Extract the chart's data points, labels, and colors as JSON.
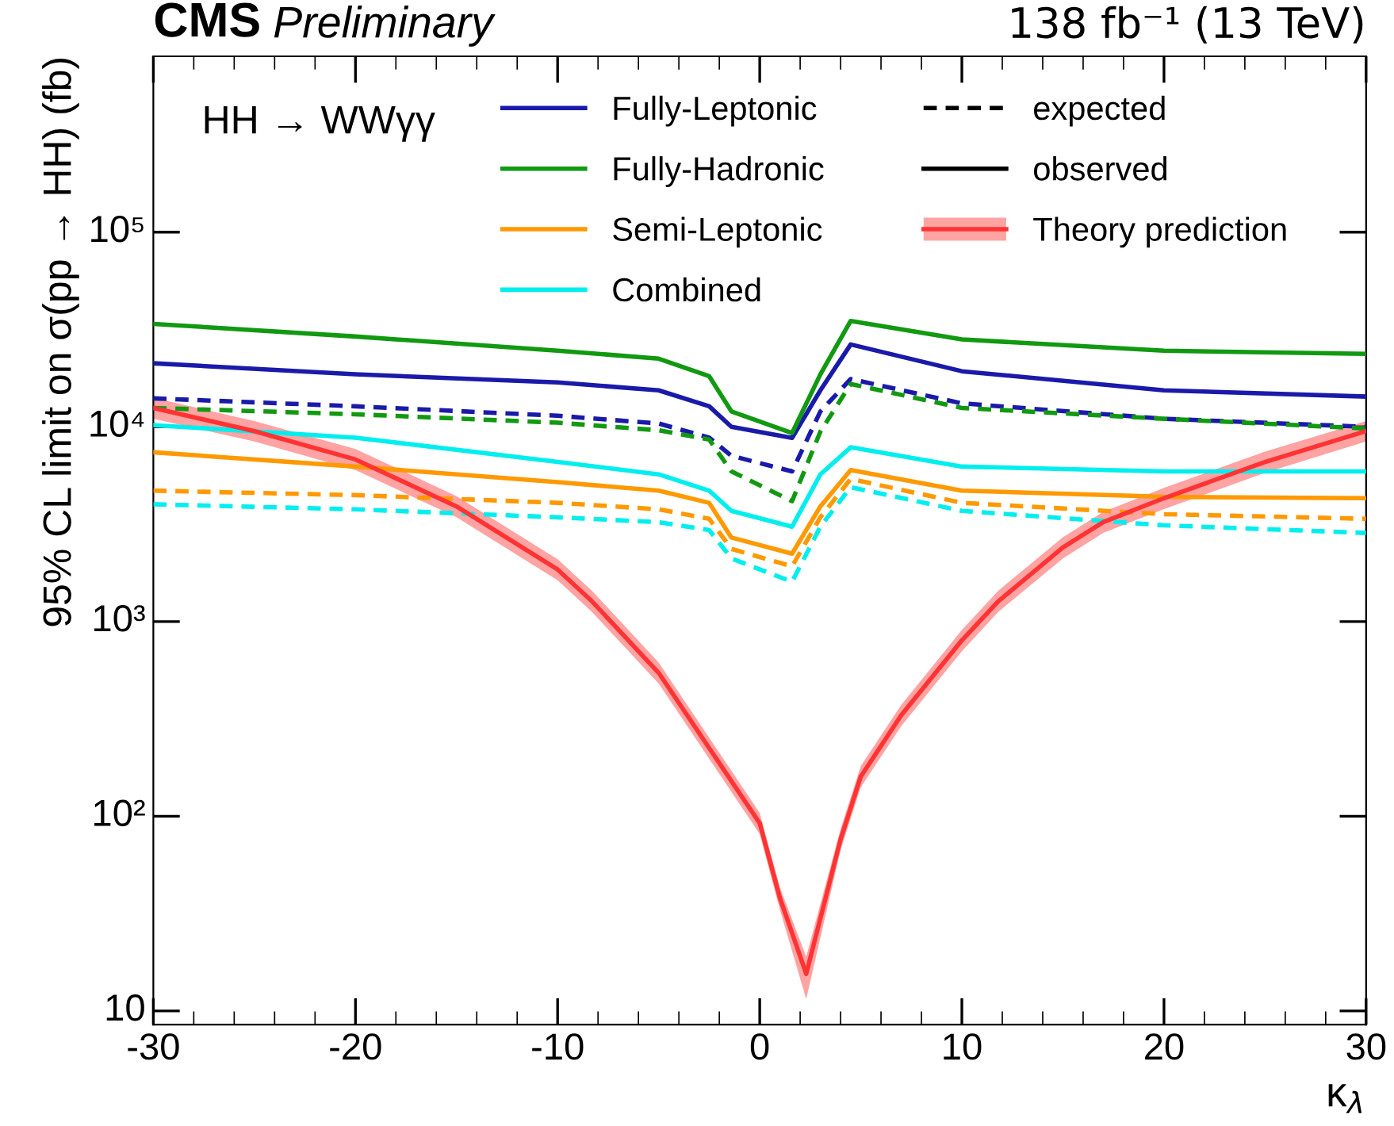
{
  "chart_data": {
    "type": "line",
    "title": "CMS",
    "subtitle": "Preliminary",
    "xlabel": "κ$_{λ}$",
    "ylabel": "95% CL limit on σ(pp → HH) (fb)",
    "annotations": [
      "138 fb⁻¹ (13 TeV)",
      "HH → WWγγ",
      "expected",
      "observed"
    ],
    "log": "y",
    "xlim": [
      -30,
      30
    ],
    "ylim": [
      8.5,
      800000
    ],
    "xticks": [
      -30,
      -20,
      -10,
      0,
      10,
      20,
      30
    ],
    "yticks": [
      {
        "value": 10,
        "label": "10"
      },
      {
        "value": 100,
        "label": "10²"
      },
      {
        "value": 1000,
        "label": "10³"
      },
      {
        "value": 10000,
        "label": "10⁴"
      },
      {
        "value": 100000,
        "label": "10⁵"
      }
    ],
    "grid": false,
    "legend": "top right",
    "marker": "none",
    "series": [
      {
        "name": "Fully-Leptonic",
        "color": "#1a1aaa",
        "line_style": "solid",
        "x": [
          -30,
          -20,
          -10,
          -5,
          -2.5,
          -1.4,
          1.6,
          3,
          4.5,
          10,
          20,
          30
        ],
        "values": [
          21200,
          18600,
          16900,
          15400,
          12750,
          10000,
          8770,
          15400,
          26500,
          19300,
          15400,
          14300
        ]
      },
      {
        "name": "Fully-Hadronic",
        "color": "#119911",
        "line_style": "solid",
        "x": [
          -30,
          -20,
          -10,
          -5,
          -2.5,
          -1.4,
          1.6,
          3,
          4.5,
          10,
          20,
          30
        ],
        "values": [
          33800,
          29100,
          24600,
          22400,
          18200,
          12000,
          9300,
          18600,
          35000,
          28100,
          24600,
          23700
        ]
      },
      {
        "name": "Semi-Leptonic",
        "color": "#ff9900",
        "line_style": "solid",
        "x": [
          -30,
          -20,
          -10,
          -5,
          -2.5,
          -1.4,
          1.6,
          3,
          4.5,
          10,
          20,
          30
        ],
        "values": [
          7400,
          6250,
          5200,
          4700,
          4070,
          2700,
          2230,
          3900,
          6000,
          4700,
          4370,
          4300
        ]
      },
      {
        "name": "Combined",
        "color": "#00eeee",
        "line_style": "solid",
        "x": [
          -30,
          -20,
          -10,
          -5,
          -2.5,
          -1.4,
          1.6,
          3,
          4.5,
          10,
          20,
          30
        ],
        "values": [
          10200,
          8800,
          6600,
          5700,
          4700,
          3700,
          3070,
          5700,
          7850,
          6250,
          5900,
          5900
        ]
      },
      {
        "color": "#1a1aaa",
        "line_style": "dashed",
        "x": [
          -30,
          -20,
          -10,
          -5,
          -2.5,
          -1.4,
          1.6,
          3,
          4.5,
          10,
          20,
          30
        ],
        "values": [
          14000,
          12750,
          11400,
          10400,
          8800,
          7100,
          5900,
          12000,
          17600,
          13200,
          11000,
          10000
        ]
      },
      {
        "color": "#119911",
        "line_style": "dashed",
        "x": [
          -30,
          -20,
          -10,
          -5,
          -2.5,
          -1.4,
          1.6,
          3,
          4.5,
          10,
          20,
          30
        ],
        "values": [
          12500,
          11600,
          10500,
          9600,
          8600,
          5900,
          4150,
          9450,
          16600,
          12500,
          11000,
          9800
        ]
      },
      {
        "color": "#ff9900",
        "line_style": "dashed",
        "x": [
          -30,
          -20,
          -10,
          -5,
          -2.5,
          -1.4,
          1.6,
          3,
          4.5,
          10,
          20,
          30
        ],
        "values": [
          4700,
          4460,
          4070,
          3770,
          3370,
          2360,
          1920,
          3430,
          5400,
          4070,
          3560,
          3370
        ]
      },
      {
        "color": "#00eeee",
        "line_style": "dashed",
        "x": [
          -30,
          -20,
          -10,
          -5,
          -2.5,
          -1.4,
          1.6,
          3,
          4.5,
          10,
          20,
          30
        ],
        "values": [
          4000,
          3770,
          3430,
          3240,
          2950,
          2110,
          1600,
          3070,
          4900,
          3700,
          3120,
          2850
        ]
      },
      {
        "name": "Theory prediction",
        "color": "#ff3333",
        "line_style": "solid",
        "x": [
          -30,
          -25,
          -20,
          -15,
          -10,
          -8.3,
          -5,
          0,
          1,
          2.3,
          4,
          5,
          7,
          10,
          11.8,
          15,
          17,
          20,
          25,
          30
        ],
        "values": [
          12500,
          9500,
          6800,
          3900,
          1850,
          1270,
          545,
          92,
          38,
          15.5,
          76,
          160,
          330,
          800,
          1270,
          2400,
          3240,
          4300,
          6600,
          9500
        ],
        "lower": [
          11000,
          8400,
          6000,
          3430,
          1630,
          1120,
          480,
          81,
          33,
          11.5,
          67,
          141,
          290,
          704,
          1120,
          2110,
          2850,
          3780,
          5800,
          8400
        ],
        "upper": [
          14100,
          10700,
          7700,
          4400,
          2090,
          1440,
          616,
          104,
          43,
          19,
          86,
          181,
          373,
          904,
          1440,
          2710,
          3660,
          4860,
          7460,
          10700
        ]
      }
    ]
  }
}
